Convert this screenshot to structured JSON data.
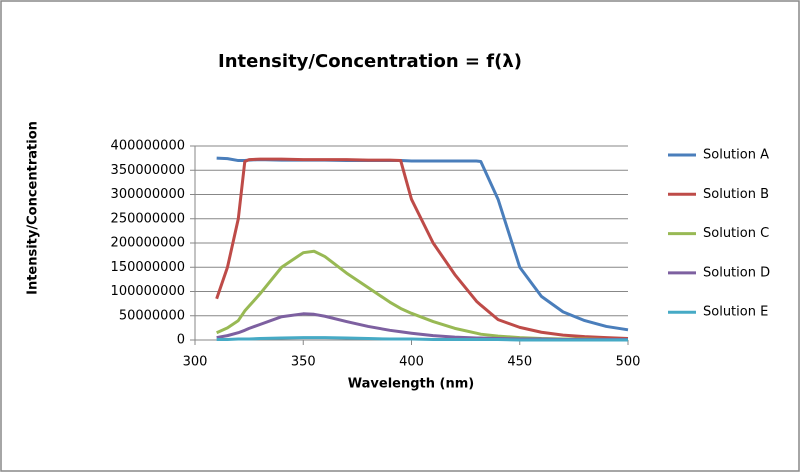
{
  "chart_data": {
    "type": "line",
    "title": "Intensity/Concentration = f(λ)",
    "x_label": "Wavelength (nm)",
    "y_label": "Intensity/Concentration",
    "x": [
      310,
      315,
      320,
      323,
      325,
      330,
      340,
      350,
      355,
      360,
      370,
      380,
      390,
      395,
      400,
      410,
      420,
      430,
      432,
      440,
      450,
      460,
      470,
      480,
      490,
      500
    ],
    "series": [
      {
        "name": "Solution A",
        "color": "#4a7ebb",
        "values": [
          375000000,
          374000000,
          370000000,
          370000000,
          371000000,
          372000000,
          371000000,
          371000000,
          371000000,
          371000000,
          370000000,
          370000000,
          370000000,
          370000000,
          369000000,
          369000000,
          369000000,
          369000000,
          368000000,
          290000000,
          150000000,
          90000000,
          58000000,
          40000000,
          28000000,
          21000000
        ]
      },
      {
        "name": "Solution B",
        "color": "#be4b48",
        "values": [
          85000000,
          150000000,
          250000000,
          368000000,
          372000000,
          373000000,
          373000000,
          372000000,
          372000000,
          372000000,
          372000000,
          371000000,
          371000000,
          370000000,
          290000000,
          200000000,
          135000000,
          80000000,
          72000000,
          42000000,
          26000000,
          16000000,
          10000000,
          7000000,
          5000000,
          3000000
        ]
      },
      {
        "name": "Solution C",
        "color": "#98b954",
        "values": [
          15000000,
          25000000,
          40000000,
          60000000,
          70000000,
          95000000,
          150000000,
          180000000,
          183000000,
          172000000,
          138000000,
          108000000,
          78000000,
          65000000,
          55000000,
          38000000,
          24000000,
          14000000,
          12000000,
          8000000,
          5000000,
          3000000,
          2000000,
          2000000,
          1000000,
          1000000
        ]
      },
      {
        "name": "Solution D",
        "color": "#7d60a0",
        "values": [
          5000000,
          9000000,
          15000000,
          20000000,
          24000000,
          32000000,
          48000000,
          54000000,
          53000000,
          49000000,
          38000000,
          28000000,
          20000000,
          17000000,
          14000000,
          9000000,
          6000000,
          4000000,
          4000000,
          3000000,
          2000000,
          2000000,
          1000000,
          1000000,
          1000000,
          1000000
        ]
      },
      {
        "name": "Solution E",
        "color": "#46aac5",
        "values": [
          1000000,
          1000000,
          2000000,
          2000000,
          2000000,
          3000000,
          4000000,
          5000000,
          5000000,
          5000000,
          4000000,
          3000000,
          2000000,
          2000000,
          2000000,
          1000000,
          1000000,
          1000000,
          1000000,
          1000000,
          0,
          0,
          0,
          0,
          0,
          0
        ]
      }
    ],
    "xlim": [
      300,
      500
    ],
    "xticks": [
      300,
      350,
      400,
      450,
      500
    ],
    "ylim": [
      0,
      400000000
    ],
    "yticks": [
      0,
      50000000,
      100000000,
      150000000,
      200000000,
      250000000,
      300000000,
      350000000,
      400000000
    ],
    "grid": true,
    "legend": "right"
  }
}
